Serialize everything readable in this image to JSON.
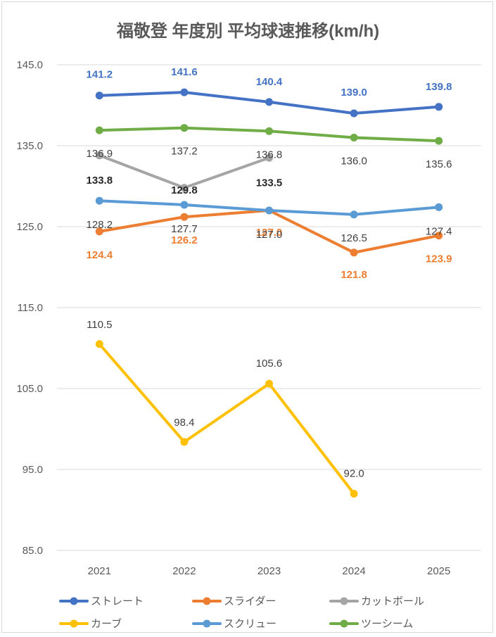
{
  "chart_data": {
    "type": "line",
    "title": "福敬登 年度別 平均球速推移(km/h)",
    "categories": [
      "2021",
      "2022",
      "2023",
      "2024",
      "2025"
    ],
    "ylim": [
      85.0,
      145.0
    ],
    "yticks": [
      "145.0",
      "135.0",
      "125.0",
      "115.0",
      "105.0",
      "95.0",
      "85.0"
    ],
    "grid": true,
    "legend_position": "bottom",
    "series": [
      {
        "name": "ストレート",
        "color": "#4472C4",
        "values": [
          141.2,
          141.6,
          140.4,
          139.0,
          139.8
        ],
        "labels": [
          "141.2",
          "141.6",
          "140.4",
          "139.0",
          "139.8"
        ],
        "label_color": "#4472C4",
        "label_bold": true
      },
      {
        "name": "スライダー",
        "color": "#ED7D31",
        "values": [
          124.4,
          126.2,
          127.0,
          121.8,
          123.9
        ],
        "labels": [
          "124.4",
          "126.2",
          "127.0",
          "121.8",
          "123.9"
        ],
        "label_color": "#ED7D31",
        "label_bold": true
      },
      {
        "name": "カットボール",
        "color": "#A5A5A5",
        "values": [
          133.8,
          129.8,
          133.5,
          null,
          null
        ],
        "labels": [
          "133.8",
          "129.8",
          "133.5",
          "",
          ""
        ],
        "label_color": "#262626",
        "label_bold": true
      },
      {
        "name": "カーブ",
        "color": "#FFC000",
        "values": [
          110.5,
          98.4,
          105.6,
          92.0,
          null
        ],
        "labels": [
          "110.5",
          "98.4",
          "105.6",
          "92.0",
          ""
        ],
        "label_color": "#404040",
        "label_bold": false
      },
      {
        "name": "スクリュー",
        "color": "#5B9BD5",
        "values": [
          128.2,
          127.7,
          127.0,
          126.5,
          127.4
        ],
        "labels": [
          "128.2",
          "127.7",
          "127.0",
          "126.5",
          "127.4"
        ],
        "label_color": "#404040",
        "label_bold": false
      },
      {
        "name": "ツーシーム",
        "color": "#70AD47",
        "values": [
          136.9,
          137.2,
          136.8,
          136.0,
          135.6
        ],
        "labels": [
          "136.9",
          "137.2",
          "136.8",
          "136.0",
          "135.6"
        ],
        "label_color": "#404040",
        "label_bold": false
      }
    ]
  }
}
